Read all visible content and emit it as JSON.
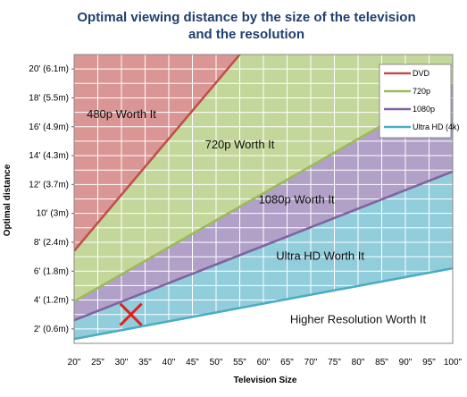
{
  "chart_data": {
    "type": "area",
    "title": [
      "Optimal viewing distance by the size of the television",
      "and the resolution"
    ],
    "xlabel": "Television Size",
    "ylabel": "Optimal distance",
    "x": [
      20,
      25,
      30,
      35,
      40,
      45,
      50,
      55,
      60,
      65,
      70,
      75,
      80,
      85,
      90,
      95,
      100
    ],
    "x_tick_labels": [
      "20\"",
      "25\"",
      "30\"",
      "35\"",
      "40\"",
      "45\"",
      "50\"",
      "55\"",
      "60\"",
      "65\"",
      "70\"",
      "75\"",
      "80\"",
      "85\"",
      "90\"",
      "95\"",
      "100\""
    ],
    "xlim": [
      20,
      100
    ],
    "ylim": [
      1,
      21
    ],
    "y_ticks": [
      2,
      4,
      6,
      8,
      10,
      12,
      14,
      16,
      18,
      20
    ],
    "y_tick_labels": [
      "2' (0.6m)",
      "4' (1.2m)",
      "6' (1.8m)",
      "8' (2.4m)",
      "10' (3m)",
      "12' (3.7m)",
      "14' (4.3m)",
      "16' (4.9m)",
      "18' (5.5m)",
      "20' (6.1m)"
    ],
    "grid": true,
    "legend_position": "top-right",
    "series": [
      {
        "name": "DVD",
        "color": "#c0504d",
        "x": [
          20,
          55
        ],
        "y": [
          7.4,
          21
        ]
      },
      {
        "name": "720p",
        "color": "#9bbb59",
        "x": [
          20,
          100
        ],
        "y": [
          3.9,
          18.9
        ]
      },
      {
        "name": "1080p",
        "color": "#8064a2",
        "x": [
          20,
          100
        ],
        "y": [
          2.6,
          12.9
        ]
      },
      {
        "name": "Ultra HD (4k)",
        "color": "#4bacc6",
        "x": [
          20,
          100
        ],
        "y": [
          1.3,
          6.2
        ]
      }
    ],
    "regions": [
      {
        "label": "480p Worth It",
        "fill": "#d99694",
        "x": 30,
        "y": 16.6
      },
      {
        "label": "720p Worth It",
        "fill": "#c4d79b",
        "x": 55,
        "y": 14.5
      },
      {
        "label": "1080p Worth It",
        "fill": "#b1a0c7",
        "x": 67,
        "y": 10.7
      },
      {
        "label": "Ultra HD Worth It",
        "fill": "#92cddc",
        "x": 72,
        "y": 6.8
      },
      {
        "label": "Higher Resolution Worth It",
        "fill": "#ffffff",
        "x": 80,
        "y": 2.4
      }
    ],
    "annotation": {
      "type": "x-mark",
      "color": "#e02020",
      "x": 32,
      "y": 3
    }
  }
}
